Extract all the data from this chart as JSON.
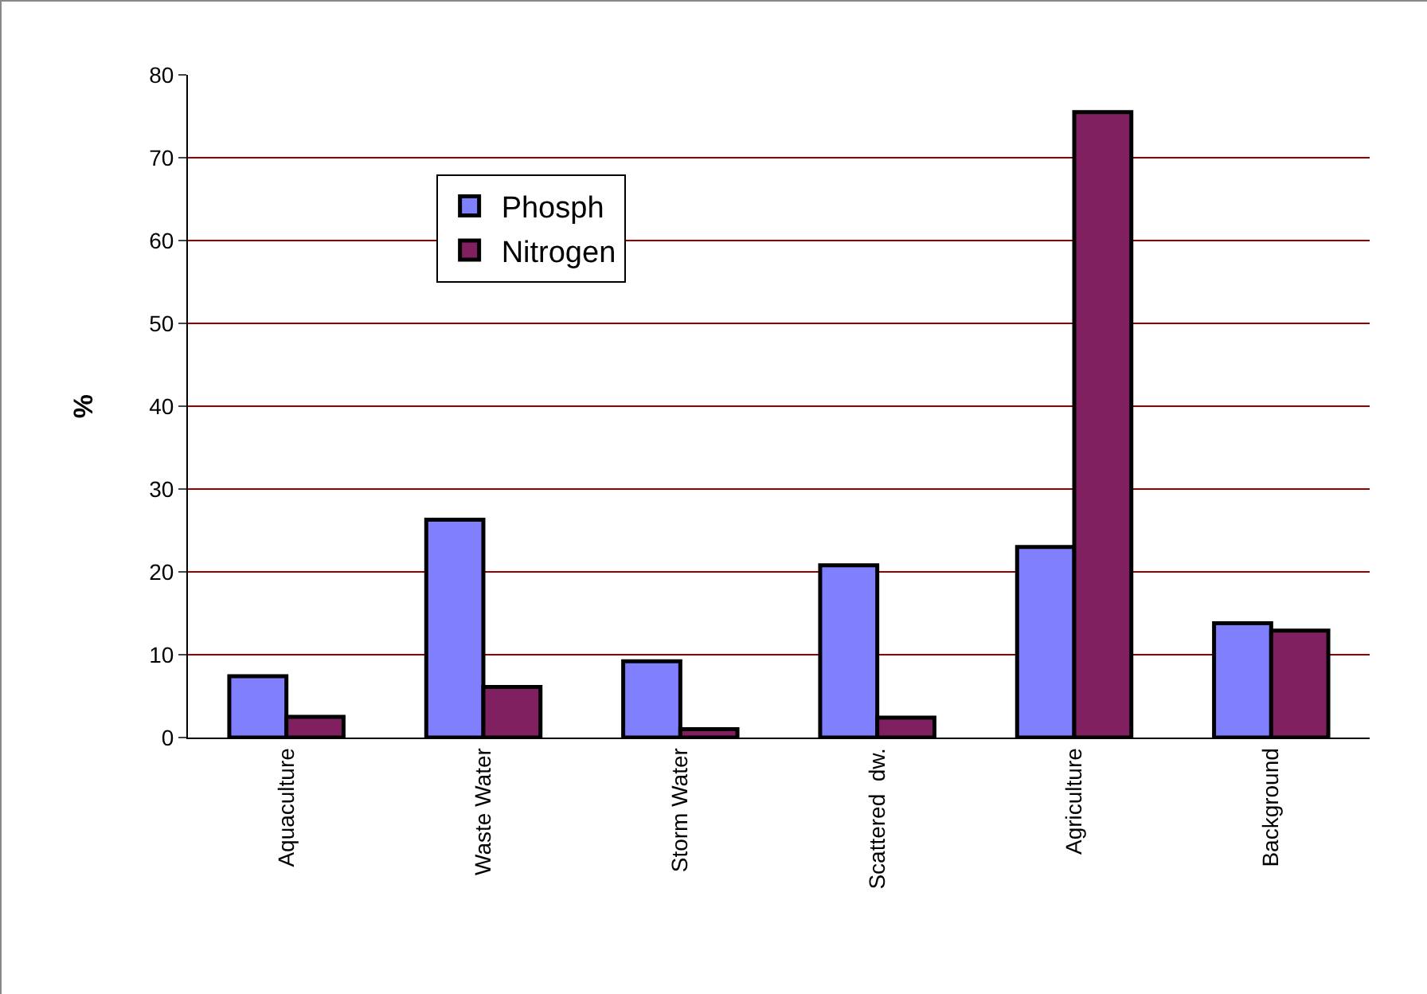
{
  "chart_data": {
    "type": "bar",
    "ylabel": "%",
    "categories": [
      "Aquaculture",
      "Waste Water",
      "Storm Water",
      "Scattered  dw.",
      "Agriculture",
      "Background"
    ],
    "series": [
      {
        "name": "Phosph",
        "color": "#8080ff",
        "values": [
          7.4,
          26.3,
          9.2,
          20.8,
          23.0,
          13.8
        ]
      },
      {
        "name": "Nitrogen",
        "color": "#802060",
        "values": [
          2.5,
          6.1,
          1.0,
          2.4,
          75.5,
          12.9
        ]
      }
    ],
    "ylim": [
      0,
      80
    ],
    "yticks": [
      0,
      10,
      20,
      30,
      40,
      50,
      60,
      70,
      80
    ],
    "grid": "y",
    "legend": "top left"
  }
}
